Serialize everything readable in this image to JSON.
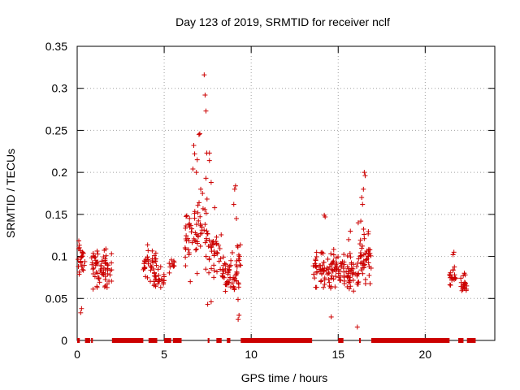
{
  "chart_data": {
    "type": "scatter",
    "title": "Day 123 of 2019, SRMTID for receiver nclf",
    "xlabel": "GPS time / hours",
    "ylabel": "SRMTID / TECUs",
    "xlim": [
      0,
      24
    ],
    "ylim": [
      0,
      0.35
    ],
    "xticks": [
      0,
      5,
      10,
      15,
      20
    ],
    "yticks": [
      0,
      0.05,
      0.1,
      0.15,
      0.2,
      0.25,
      0.3,
      0.35
    ],
    "ytick_labels": [
      "0",
      "0.05",
      "0.1",
      "0.15",
      "0.2",
      "0.25",
      "0.3",
      "0.35"
    ],
    "grid": true,
    "marker": "+",
    "series_color": "#cc0000",
    "zero_segments": [
      [
        0.0,
        0.15
      ],
      [
        0.45,
        0.75
      ],
      [
        0.8,
        0.9
      ],
      [
        2.0,
        3.8
      ],
      [
        4.1,
        4.6
      ],
      [
        5.0,
        5.4
      ],
      [
        5.5,
        6.0
      ],
      [
        7.5,
        7.6
      ],
      [
        8.0,
        8.3
      ],
      [
        8.6,
        8.8
      ],
      [
        9.4,
        13.5
      ],
      [
        15.0,
        15.3
      ],
      [
        16.2,
        16.3
      ],
      [
        16.9,
        21.4
      ],
      [
        21.9,
        22.2
      ],
      [
        22.4,
        22.9
      ]
    ],
    "clusters": [
      {
        "x0": 0.0,
        "x1": 0.45,
        "base": 0.095,
        "spread": 0.035,
        "n": 26
      },
      {
        "x0": 0.8,
        "x1": 2.0,
        "base": 0.085,
        "spread": 0.032,
        "n": 70
      },
      {
        "x0": 3.8,
        "x1": 4.1,
        "base": 0.095,
        "spread": 0.03,
        "n": 20
      },
      {
        "x0": 4.2,
        "x1": 4.6,
        "base": 0.085,
        "spread": 0.035,
        "n": 28
      },
      {
        "x0": 4.6,
        "x1": 5.0,
        "base": 0.07,
        "spread": 0.022,
        "n": 18
      },
      {
        "x0": 5.2,
        "x1": 5.6,
        "base": 0.09,
        "spread": 0.012,
        "n": 10
      },
      {
        "x0": 6.2,
        "x1": 7.5,
        "base": 0.13,
        "spread": 0.06,
        "n": 65
      },
      {
        "x0": 7.5,
        "x1": 8.3,
        "base": 0.105,
        "spread": 0.04,
        "n": 35
      },
      {
        "x0": 8.3,
        "x1": 8.7,
        "base": 0.08,
        "spread": 0.025,
        "n": 25
      },
      {
        "x0": 8.7,
        "x1": 9.4,
        "base": 0.085,
        "spread": 0.045,
        "n": 40
      },
      {
        "x0": 13.5,
        "x1": 15.0,
        "base": 0.085,
        "spread": 0.03,
        "n": 80
      },
      {
        "x0": 15.0,
        "x1": 16.2,
        "base": 0.08,
        "spread": 0.03,
        "n": 65
      },
      {
        "x0": 16.2,
        "x1": 16.9,
        "base": 0.1,
        "spread": 0.045,
        "n": 45
      },
      {
        "x0": 21.4,
        "x1": 21.8,
        "base": 0.075,
        "spread": 0.018,
        "n": 18
      },
      {
        "x0": 22.0,
        "x1": 22.4,
        "base": 0.065,
        "spread": 0.014,
        "n": 18
      }
    ],
    "highlights": [
      [
        7.3,
        0.316
      ],
      [
        7.35,
        0.292
      ],
      [
        7.4,
        0.273
      ],
      [
        7.0,
        0.245
      ],
      [
        7.05,
        0.246
      ],
      [
        6.7,
        0.232
      ],
      [
        7.6,
        0.223
      ],
      [
        7.45,
        0.223
      ],
      [
        6.75,
        0.222
      ],
      [
        7.6,
        0.214
      ],
      [
        6.9,
        0.215
      ],
      [
        6.65,
        0.204
      ],
      [
        6.85,
        0.2
      ],
      [
        7.7,
        0.188
      ],
      [
        7.4,
        0.193
      ],
      [
        9.1,
        0.184
      ],
      [
        9.05,
        0.18
      ],
      [
        7.1,
        0.18
      ],
      [
        7.2,
        0.175
      ],
      [
        7.9,
        0.158
      ],
      [
        9.0,
        0.162
      ],
      [
        9.15,
        0.145
      ],
      [
        14.2,
        0.149
      ],
      [
        14.25,
        0.147
      ],
      [
        16.5,
        0.2
      ],
      [
        16.55,
        0.196
      ],
      [
        16.45,
        0.18
      ],
      [
        16.35,
        0.17
      ],
      [
        16.4,
        0.162
      ],
      [
        16.3,
        0.142
      ],
      [
        16.15,
        0.14
      ],
      [
        15.7,
        0.13
      ],
      [
        15.6,
        0.12
      ],
      [
        16.1,
        0.016
      ],
      [
        14.6,
        0.028
      ],
      [
        9.3,
        0.03
      ],
      [
        9.25,
        0.025
      ],
      [
        0.2,
        0.033
      ],
      [
        0.25,
        0.038
      ],
      [
        21.65,
        0.105
      ],
      [
        21.6,
        0.102
      ],
      [
        22.25,
        0.08
      ],
      [
        22.3,
        0.078
      ],
      [
        7.5,
        0.043
      ],
      [
        7.7,
        0.046
      ],
      [
        6.5,
        0.07
      ],
      [
        7.85,
        0.075
      ]
    ]
  }
}
